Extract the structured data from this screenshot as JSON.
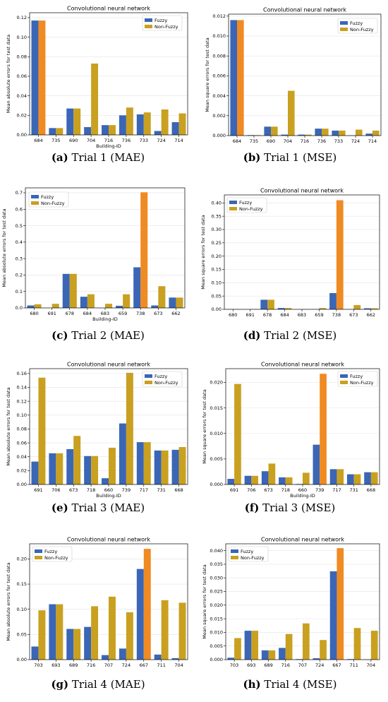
{
  "colors": {
    "fuzzy": "#3a66b5",
    "non_fuzzy": "#c9a020",
    "non_fuzzy_peak": "#f08a22",
    "grid": "#e4e4e4"
  },
  "panels": [
    {
      "caption_letter": "(a)",
      "caption_text": " Trial 1 (MAE)"
    },
    {
      "caption_letter": "(b)",
      "caption_text": " Trial 1 (MSE)"
    },
    {
      "caption_letter": "(c)",
      "caption_text": " Trial 2 (MAE)"
    },
    {
      "caption_letter": "(d)",
      "caption_text": " Trial 2 (MSE)"
    },
    {
      "caption_letter": "(e)",
      "caption_text": " Trial 3 (MAE)"
    },
    {
      "caption_letter": "(f)",
      "caption_text": " Trial 3 (MSE)"
    },
    {
      "caption_letter": "(g)",
      "caption_text": " Trial 4 (MAE)"
    },
    {
      "caption_letter": "(h)",
      "caption_text": " Trial 4 (MSE)"
    }
  ],
  "chart_data": [
    {
      "type": "bar",
      "title": "Convolutional neural network",
      "xlabel": "Building-ID",
      "ylabel": "Mean absolute errors for test data",
      "categories": [
        "684",
        "735",
        "690",
        "704",
        "716",
        "736",
        "733",
        "724",
        "714"
      ],
      "series": [
        {
          "name": "Fuzzy",
          "values": [
            0.117,
            0.007,
            0.027,
            0.008,
            0.01,
            0.02,
            0.021,
            0.004,
            0.013
          ]
        },
        {
          "name": "Non-Fuzzy",
          "values": [
            0.117,
            0.007,
            0.027,
            0.073,
            0.01,
            0.028,
            0.023,
            0.026,
            0.022
          ]
        }
      ],
      "ylim": [
        0,
        0.125
      ],
      "yticks": [
        "0.00",
        "0.02",
        "0.04",
        "0.06",
        "0.08",
        "0.10",
        "0.12"
      ],
      "legend": "top-right",
      "grid": true
    },
    {
      "type": "bar",
      "title": "Convolutional neural network",
      "xlabel": "",
      "ylabel": "Mean square errors for test data",
      "categories": [
        "684",
        "735",
        "690",
        "704",
        "716",
        "736",
        "733",
        "724",
        "714"
      ],
      "series": [
        {
          "name": "Fuzzy",
          "values": [
            0.0116,
            5e-05,
            0.0009,
            0.0001,
            0.0001,
            0.0007,
            0.0005,
            2e-05,
            0.0002
          ]
        },
        {
          "name": "Non-Fuzzy",
          "values": [
            0.0116,
            5e-05,
            0.0009,
            0.0045,
            0.0001,
            0.0007,
            0.0005,
            0.0006,
            0.0005
          ]
        }
      ],
      "ylim": [
        0,
        0.0122
      ],
      "yticks": [
        "0.000",
        "0.002",
        "0.004",
        "0.006",
        "0.008",
        "0.010",
        "0.012"
      ],
      "legend": "top-right",
      "grid": true
    },
    {
      "type": "bar",
      "title": "",
      "xlabel": "Building-ID",
      "ylabel": "Mean absolute errors for test data",
      "categories": [
        "680",
        "691",
        "678",
        "684",
        "683",
        "659",
        "738",
        "673",
        "662"
      ],
      "series": [
        {
          "name": "Fuzzy",
          "values": [
            0.015,
            0.0,
            0.207,
            0.068,
            0.0,
            0.013,
            0.247,
            0.015,
            0.063
          ]
        },
        {
          "name": "Non-Fuzzy",
          "values": [
            0.022,
            0.025,
            0.207,
            0.083,
            0.025,
            0.083,
            0.703,
            0.132,
            0.063
          ]
        }
      ],
      "ylim": [
        0,
        0.73
      ],
      "yticks": [
        "0.0",
        "0.1",
        "0.2",
        "0.3",
        "0.4",
        "0.5",
        "0.6",
        "0.7"
      ],
      "legend": "top-left",
      "grid": true
    },
    {
      "type": "bar",
      "title": "Convolutional neural network",
      "xlabel": "",
      "ylabel": "Mean square errors for test data",
      "categories": [
        "680",
        "691",
        "678",
        "684",
        "683",
        "659",
        "738",
        "673",
        "662"
      ],
      "series": [
        {
          "name": "Fuzzy",
          "values": [
            0.0003,
            0.0,
            0.036,
            0.005,
            0.0,
            0.0003,
            0.061,
            0.0003,
            0.004
          ]
        },
        {
          "name": "Non-Fuzzy",
          "values": [
            0.0005,
            0.0007,
            0.036,
            0.005,
            0.0007,
            0.005,
            0.41,
            0.016,
            0.004
          ]
        }
      ],
      "ylim": [
        0,
        0.43
      ],
      "yticks": [
        "0.00",
        "0.05",
        "0.10",
        "0.15",
        "0.20",
        "0.25",
        "0.30",
        "0.35",
        "0.40"
      ],
      "legend": "top-left",
      "grid": true
    },
    {
      "type": "bar",
      "title": "Convolutional neural network",
      "xlabel": "Building-ID",
      "ylabel": "Mean absolute errors for test data",
      "categories": [
        "691",
        "706",
        "673",
        "718",
        "660",
        "739",
        "717",
        "731",
        "668"
      ],
      "series": [
        {
          "name": "Fuzzy",
          "values": [
            0.033,
            0.045,
            0.051,
            0.041,
            0.009,
            0.088,
            0.061,
            0.049,
            0.05
          ]
        },
        {
          "name": "Non-Fuzzy",
          "values": [
            0.154,
            0.045,
            0.07,
            0.041,
            0.053,
            0.161,
            0.061,
            0.049,
            0.054
          ]
        }
      ],
      "ylim": [
        0,
        0.167
      ],
      "yticks": [
        "0.00",
        "0.02",
        "0.04",
        "0.06",
        "0.08",
        "0.10",
        "0.12",
        "0.14",
        "0.16"
      ],
      "legend": "top-right",
      "grid": true
    },
    {
      "type": "bar",
      "title": "Convolutional neural network",
      "xlabel": "Building-ID",
      "ylabel": "Mean square errors for test data",
      "categories": [
        "691",
        "706",
        "673",
        "718",
        "660",
        "739",
        "717",
        "731",
        "668"
      ],
      "series": [
        {
          "name": "Fuzzy",
          "values": [
            0.0011,
            0.0017,
            0.0026,
            0.0014,
            0.0001,
            0.0078,
            0.003,
            0.002,
            0.0024
          ]
        },
        {
          "name": "Non-Fuzzy",
          "values": [
            0.0197,
            0.0017,
            0.0041,
            0.0014,
            0.0023,
            0.0217,
            0.003,
            0.002,
            0.0024
          ]
        }
      ],
      "ylim": [
        0,
        0.0227
      ],
      "yticks": [
        "0.000",
        "0.005",
        "0.010",
        "0.015",
        "0.020"
      ],
      "legend": "top-right",
      "grid": true
    },
    {
      "type": "bar",
      "title": "Convolutional neural network",
      "xlabel": "",
      "ylabel": "Mean absolute errors for test data",
      "categories": [
        "703",
        "693",
        "689",
        "716",
        "707",
        "724",
        "667",
        "711",
        "704"
      ],
      "series": [
        {
          "name": "Fuzzy",
          "values": [
            0.026,
            0.11,
            0.061,
            0.065,
            0.009,
            0.022,
            0.18,
            0.01,
            0.003
          ]
        },
        {
          "name": "Non-Fuzzy",
          "values": [
            0.098,
            0.11,
            0.061,
            0.106,
            0.125,
            0.094,
            0.22,
            0.118,
            0.113
          ]
        }
      ],
      "ylim": [
        0,
        0.23
      ],
      "yticks": [
        "0.00",
        "0.05",
        "0.10",
        "0.15",
        "0.20"
      ],
      "legend": "top-left",
      "grid": true
    },
    {
      "type": "bar",
      "title": "Convolutional neural network",
      "xlabel": "",
      "ylabel": "Mean square errors for test data",
      "categories": [
        "703",
        "693",
        "689",
        "716",
        "707",
        "724",
        "667",
        "711",
        "704"
      ],
      "series": [
        {
          "name": "Fuzzy",
          "values": [
            0.0007,
            0.0106,
            0.0034,
            0.0043,
            0.0002,
            0.0005,
            0.0324,
            0.0002,
            0.0001
          ]
        },
        {
          "name": "Non-Fuzzy",
          "values": [
            0.0079,
            0.0106,
            0.0034,
            0.0094,
            0.0133,
            0.0072,
            0.0409,
            0.0116,
            0.0106
          ]
        }
      ],
      "ylim": [
        0,
        0.0425
      ],
      "yticks": [
        "0.000",
        "0.005",
        "0.010",
        "0.015",
        "0.020",
        "0.025",
        "0.030",
        "0.035",
        "0.040"
      ],
      "legend": "top-left",
      "grid": true
    }
  ]
}
